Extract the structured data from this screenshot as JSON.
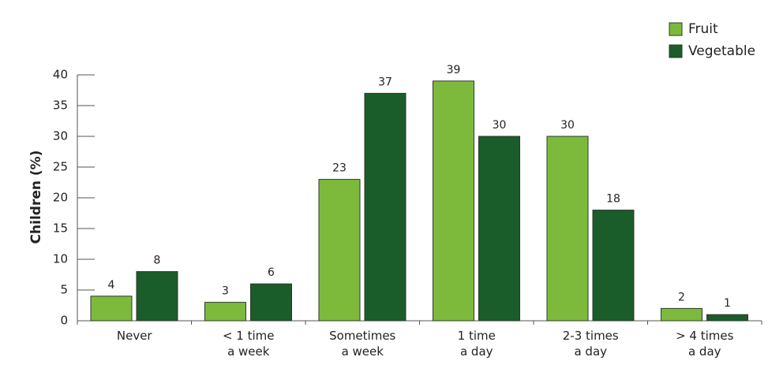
{
  "chart_data": {
    "type": "bar",
    "ylabel": "Children (%)",
    "categories": [
      "Never",
      "< 1 time\na week",
      "Sometimes\na week",
      "1 time\na day",
      "2-3 times\na day",
      "> 4 times\na day"
    ],
    "series": [
      {
        "name": "Fruit",
        "color": "#7dba3c",
        "values": [
          4,
          3,
          23,
          39,
          30,
          2
        ]
      },
      {
        "name": "Vegetable",
        "color": "#1a5c2a",
        "values": [
          8,
          6,
          37,
          30,
          18,
          1
        ]
      }
    ],
    "ylim": [
      0,
      40
    ],
    "yticks": [
      0,
      5,
      10,
      15,
      20,
      25,
      30,
      35,
      40
    ],
    "legend": "top-right"
  }
}
